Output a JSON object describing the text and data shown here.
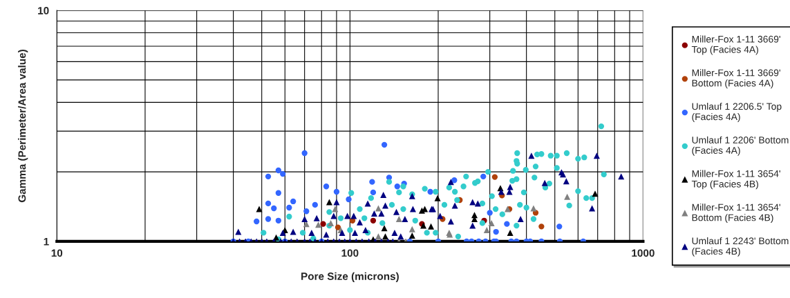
{
  "chart_data": {
    "type": "scatter",
    "xlabel": "Pore Size (microns)",
    "ylabel": "Gamma (Perimeter/Area value)",
    "log": "xy",
    "grid": true,
    "legend": "right",
    "xlim": [
      10,
      1000
    ],
    "ylim": [
      1,
      10
    ],
    "xticks": [
      10,
      {
        "value": 20,
        "label": null
      },
      {
        "value": 30,
        "label": null
      },
      {
        "value": 40,
        "label": null
      },
      {
        "value": 50,
        "label": null
      },
      {
        "value": 60,
        "label": null
      },
      {
        "value": 70,
        "label": null
      },
      {
        "value": 80,
        "label": null
      },
      {
        "value": 90,
        "label": null
      },
      100,
      {
        "value": 200,
        "label": null
      },
      {
        "value": 300,
        "label": null
      },
      {
        "value": 400,
        "label": null
      },
      {
        "value": 500,
        "label": null
      },
      {
        "value": 600,
        "label": null
      },
      {
        "value": 700,
        "label": null
      },
      {
        "value": 800,
        "label": null
      },
      {
        "value": 900,
        "label": null
      },
      1000
    ],
    "yticks": [
      1,
      {
        "value": 2,
        "label": null
      },
      {
        "value": 3,
        "label": null
      },
      {
        "value": 4,
        "label": null
      },
      {
        "value": 5,
        "label": null
      },
      {
        "value": 6,
        "label": null
      },
      {
        "value": 7,
        "label": null
      },
      {
        "value": 8,
        "label": null
      },
      {
        "value": 9,
        "label": null
      },
      10
    ],
    "series": [
      {
        "name": "Miller-Fox 1-11 3669' Top (Facies 4A)",
        "color": "#8b0000",
        "marker": "circle",
        "x": [
          81,
          176,
          287,
          120
        ],
        "values": [
          1.19,
          1.19,
          1.23,
          1.23
        ]
      },
      {
        "name": "Miller-Fox 1-11 3669' Bottom (Facies 4A)",
        "color": "#b0410a",
        "marker": "circle",
        "x": [
          312,
          330,
          350,
          430,
          450,
          237,
          91,
          102,
          207
        ],
        "values": [
          1.9,
          1.58,
          1.38,
          1.33,
          1.16,
          1.51,
          1.15,
          1.23,
          1.25
        ]
      },
      {
        "name": "Umlauf 1 2206.5' Top (Facies 4A)",
        "color": "#3366ff",
        "marker": "circle",
        "x": [
          57,
          59,
          52.6,
          70,
          131,
          57,
          83,
          119,
          136,
          153,
          52.6,
          64,
          62,
          55,
          71,
          76,
          90,
          99,
          48,
          52.6,
          57,
          120,
          145,
          188,
          227,
          285,
          300,
          343,
          315,
          518,
          40,
          45,
          60,
          80,
          160,
          200,
          250,
          260,
          275,
          290,
          310,
          315,
          355,
          370,
          400,
          412,
          450,
          520,
          625
        ],
        "values": [
          2.03,
          1.96,
          1.91,
          2.41,
          2.62,
          1.62,
          1.73,
          1.81,
          1.89,
          1.78,
          1.46,
          1.49,
          1.4,
          1.39,
          1.35,
          1.44,
          1.64,
          1.52,
          1.22,
          1.25,
          1.23,
          1.63,
          1.73,
          1.64,
          1.84,
          1.91,
          1.33,
          1.19,
          1.1,
          1.16,
          1,
          1,
          1,
          1,
          1,
          1,
          1,
          1,
          1,
          1,
          1,
          1,
          1,
          1,
          1,
          1,
          1,
          1,
          1
        ]
      },
      {
        "name": "Umlauf 1 2206' Bottom (Facies 4A)",
        "color": "#33cccc",
        "marker": "circle",
        "x": [
          720,
          372,
          435,
          450,
          484,
          508,
          549,
          600,
          630,
          370,
          372,
          430,
          360,
          398,
          508,
          426,
          735,
          296,
          249,
          273,
          358,
          370,
          479,
          464,
          600,
          640,
          670,
          560,
          423,
          400,
          370,
          392,
          305,
          314,
          331,
          380,
          267,
          283,
          244,
          218,
          228,
          196,
          232,
          210,
          283,
          234,
          196,
          101,
          136,
          152,
          180,
          147,
          163,
          118,
          108,
          85,
          62,
          93,
          112,
          129,
          167,
          85,
          100,
          50.7,
          69,
          115,
          183,
          152,
          139,
          57,
          75
        ],
        "values": [
          3.15,
          2.41,
          2.38,
          2.39,
          2.35,
          2.35,
          2.41,
          2.28,
          2.31,
          2.23,
          2.17,
          2.11,
          2.02,
          2.04,
          2.08,
          1.89,
          1.95,
          2.0,
          1.91,
          1.82,
          1.83,
          1.86,
          1.78,
          1.71,
          1.65,
          1.54,
          1.54,
          1.43,
          1.25,
          1.4,
          1.17,
          1.63,
          1.57,
          1.38,
          1.31,
          1.44,
          1.79,
          1.46,
          1.73,
          1.71,
          1.64,
          1.64,
          1.51,
          1.44,
          1.2,
          1.05,
          1.09,
          1.62,
          1.81,
          1.73,
          1.69,
          1.63,
          1.6,
          1.54,
          1.38,
          1.34,
          1.28,
          1.26,
          1.26,
          1.2,
          1.23,
          1.17,
          1.12,
          1.09,
          1.09,
          1.09,
          1.09,
          1.38,
          1.44,
          1.02,
          1.03
        ]
      },
      {
        "name": "Miller-Fox 1-11 3654' Top (Facies 4B)",
        "color": "#000000",
        "marker": "triangle",
        "x": [
          49,
          85,
          60,
          176,
          180,
          178,
          163,
          131,
          132,
          120,
          56,
          199,
          189,
          266,
          266,
          326,
          686,
          352
        ],
        "values": [
          1.38,
          1.48,
          1.12,
          1.36,
          1.38,
          1.17,
          1.06,
          1.14,
          1.05,
          1.02,
          1.04,
          1.54,
          1.16,
          1.3,
          1.25,
          1.7,
          1.61,
          1.09
        ]
      },
      {
        "name": "Miller-Fox 1-11 3654' Bottom (Facies 4B)",
        "color": "#808080",
        "marker": "triangle",
        "x": [
          89,
          71,
          78,
          86,
          125,
          147,
          163,
          125,
          147,
          155,
          93,
          218,
          219,
          304,
          293,
          345,
          423,
          551
        ],
        "values": [
          1.38,
          1.19,
          1.18,
          1.2,
          1.39,
          1.25,
          1.13,
          1.05,
          1.0,
          1.0,
          1.12,
          1.09,
          1.07,
          1.2,
          1.12,
          1.38,
          1.39,
          1.56
        ]
      },
      {
        "name": "Umlauf 1 2243' Bottom (Facies 4B)",
        "color": "#000080",
        "marker": "triangle",
        "x": [
          40,
          42,
          44,
          46,
          48,
          50,
          52,
          55,
          58,
          60,
          63,
          66,
          70,
          73,
          76,
          80,
          84,
          88,
          92,
          96,
          100,
          105,
          110,
          116,
          122,
          128,
          135,
          140,
          41.6,
          70,
          77,
          64,
          59,
          88,
          90,
          98,
          103,
          108,
          115,
          121,
          130,
          132,
          128,
          144,
          163,
          164,
          154,
          190,
          74,
          83,
          94,
          104,
          113,
          142,
          149,
          221,
          262,
          273,
          228,
          192,
          203,
          221,
          262,
          328,
          352,
          350,
          382,
          416,
          527,
          533,
          547,
          462,
          695,
          842,
          670
        ],
        "values": [
          1,
          1,
          1,
          1,
          1,
          1,
          1,
          1,
          1,
          1,
          1,
          1,
          1,
          1,
          1,
          1,
          1,
          1,
          1,
          1,
          1,
          1,
          1,
          1,
          1,
          1,
          1,
          1,
          1.1,
          1.25,
          1.26,
          1.1,
          1.09,
          1.29,
          1.48,
          1.29,
          1.29,
          1.21,
          1.46,
          1.32,
          1.59,
          1.43,
          1.32,
          1.34,
          1.57,
          1.38,
          1.25,
          1.38,
          1.09,
          1.07,
          1.09,
          1.09,
          1.12,
          1.09,
          1.05,
          1.81,
          1.48,
          1.46,
          1.43,
          1.38,
          1.29,
          1.22,
          1.17,
          1.64,
          1.72,
          1.64,
          1.25,
          2.35,
          1.99,
          1.95,
          1.82,
          1.79,
          2.35,
          1.91,
          1.39
        ]
      }
    ]
  }
}
